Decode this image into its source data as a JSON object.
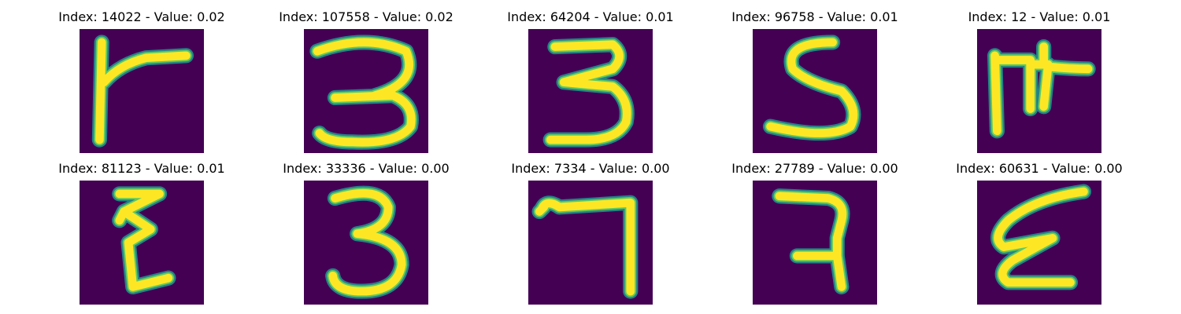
{
  "palette": {
    "background": "#440154",
    "stroke_edge": "#21918c",
    "stroke_mid": "#5ec962",
    "stroke_core": "#fde725"
  },
  "panels": [
    {
      "title": "Index: 14022 - Value: 0.02",
      "index": 14022,
      "value": 0.02,
      "depicts": "digit-like glyph resembling a 7 / F"
    },
    {
      "title": "Index: 107558 - Value: 0.02",
      "index": 107558,
      "value": 0.02,
      "depicts": "digit 3"
    },
    {
      "title": "Index: 64204 - Value: 0.01",
      "index": 64204,
      "value": 0.01,
      "depicts": "digit 3"
    },
    {
      "title": "Index: 96758 - Value: 0.01",
      "index": 96758,
      "value": 0.01,
      "depicts": "digit 5"
    },
    {
      "title": "Index: 12 - Value: 0.01",
      "index": 12,
      "value": 0.01,
      "depicts": "glyph resembling a 4 / F"
    },
    {
      "title": "Index: 81123 - Value: 0.01",
      "index": 81123,
      "value": 0.01,
      "depicts": "zig-zag glyph resembling a 3 / z"
    },
    {
      "title": "Index: 33336 - Value: 0.00",
      "index": 33336,
      "value": 0.0,
      "depicts": "digit 3"
    },
    {
      "title": "Index: 7334 - Value: 0.00",
      "index": 7334,
      "value": 0.0,
      "depicts": "digit 7"
    },
    {
      "title": "Index: 27789 - Value: 0.00",
      "index": 27789,
      "value": 0.0,
      "depicts": "digit 7 / 2"
    },
    {
      "title": "Index: 60631 - Value: 0.00",
      "index": 60631,
      "value": 0.0,
      "depicts": "glyph resembling a reversed 3"
    }
  ]
}
